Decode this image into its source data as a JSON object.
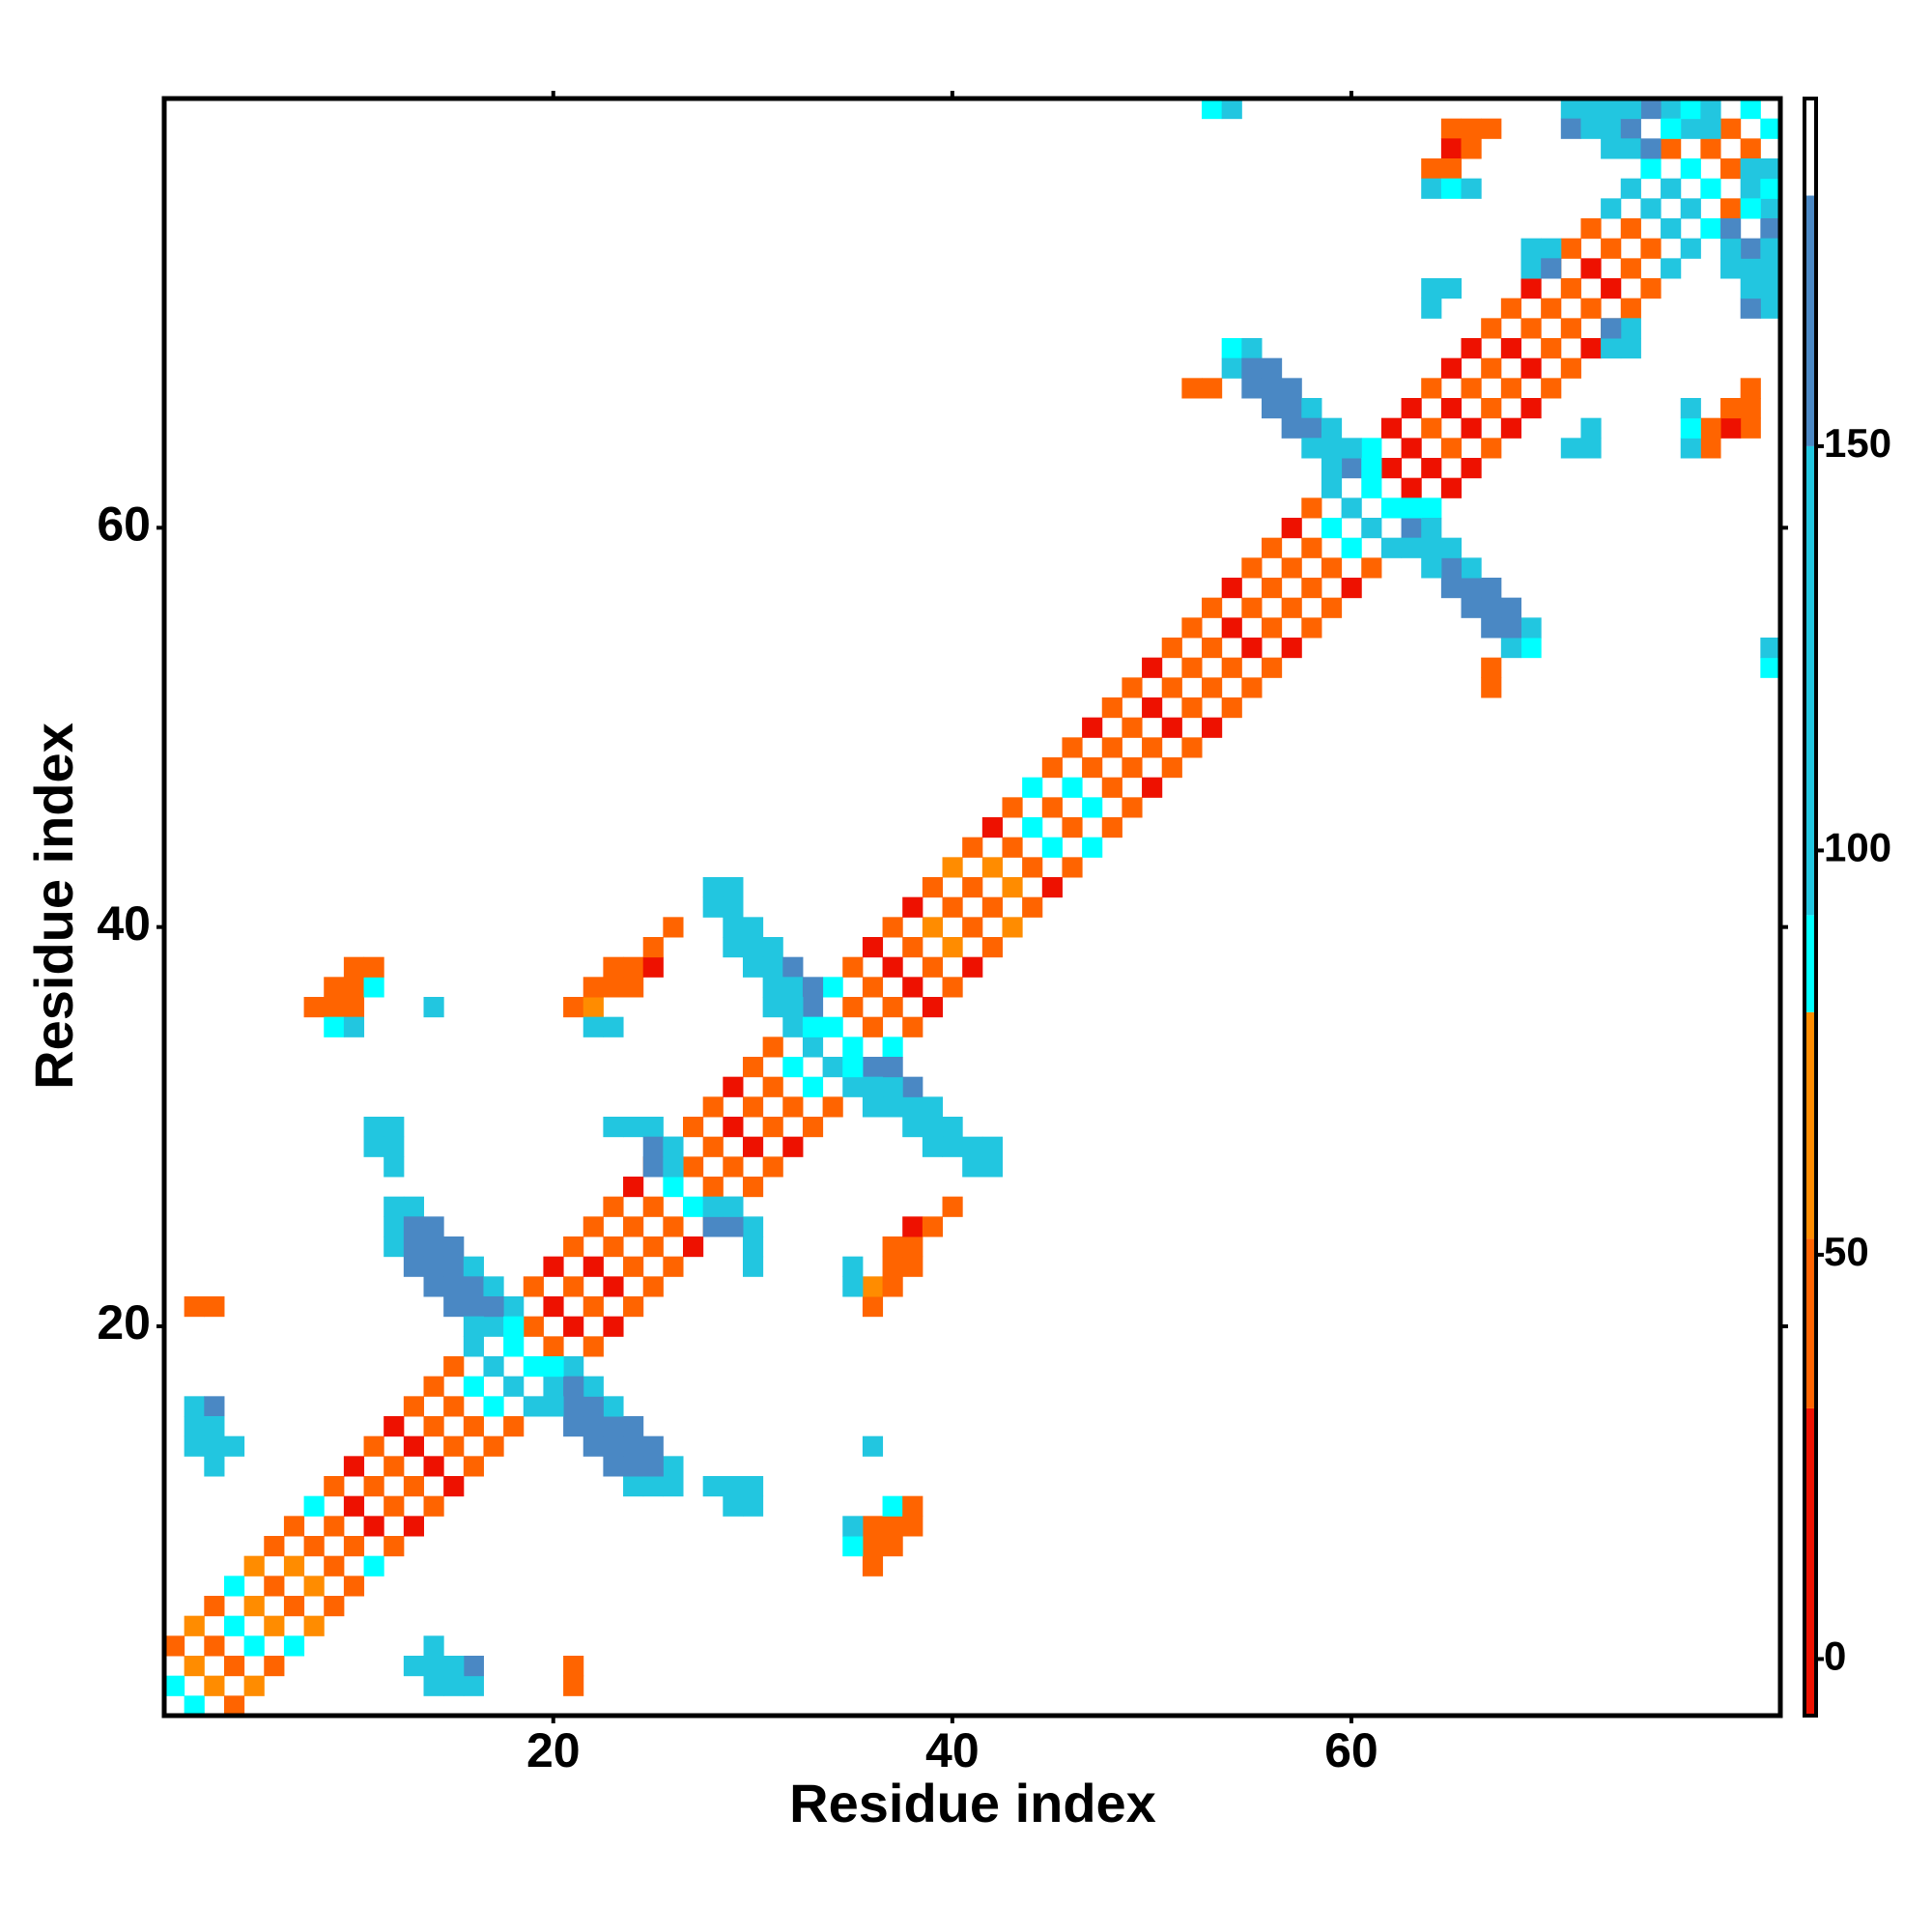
{
  "chart_data": {
    "type": "heatmap",
    "xlabel": "Residue index",
    "ylabel": "Residue index",
    "xlim": [
      0.5,
      81.5
    ],
    "ylim": [
      0.5,
      81.5
    ],
    "xticks": [
      20,
      40,
      60
    ],
    "yticks": [
      20,
      40,
      60
    ],
    "symmetric": true,
    "colorbar": {
      "lim": [
        -7,
        193
      ],
      "ticks": [
        0,
        50,
        100,
        150
      ],
      "bins": [
        -7,
        31,
        52,
        80,
        92,
        150,
        181,
        193
      ],
      "colors": [
        "#ee1100",
        "#ff6400",
        "#ff8c00",
        "#00ffff",
        "#22c6e0",
        "#4a88c4",
        "#ffffff"
      ]
    },
    "bands": [
      {
        "offset": 1,
        "start": 1,
        "values": [
          86,
          65,
          40,
          86,
          65,
          40,
          65,
          40,
          40,
          15,
          40,
          40,
          15,
          40,
          40,
          86,
          120,
          86,
          40,
          15,
          40,
          15,
          40,
          40,
          40,
          86,
          40,
          40,
          15,
          40,
          40,
          86,
          120,
          86,
          40,
          40,
          15,
          40,
          65,
          40,
          40,
          65,
          40,
          86,
          40,
          86,
          40,
          40,
          40,
          15,
          40,
          40,
          40,
          15,
          40,
          40,
          40,
          40,
          86,
          120,
          86,
          15,
          15,
          40,
          15,
          40,
          40,
          15,
          40,
          40,
          40,
          15,
          40,
          40,
          120,
          120,
          86,
          40,
          40,
          86
        ]
      },
      {
        "offset": 3,
        "start": 1,
        "values": [
          40,
          65,
          40,
          86,
          65,
          40,
          40,
          86,
          40,
          15,
          40,
          15,
          40,
          40,
          40,
          120,
          120,
          120,
          40,
          15,
          40,
          40,
          40,
          15,
          40,
          120,
          40,
          40,
          15,
          40,
          40,
          120,
          165,
          86,
          40,
          15,
          40,
          15,
          40,
          65,
          40,
          15,
          40,
          86,
          40,
          40,
          15,
          40,
          40,
          15,
          40,
          40,
          40,
          15,
          40,
          40,
          15,
          40,
          120,
          165,
          86,
          15,
          15,
          40,
          15,
          15,
          40,
          40,
          15,
          40,
          40,
          40,
          120,
          120,
          86,
          40,
          120,
          120
        ]
      }
    ],
    "cells": [
      [
        12,
        26,
        120
      ],
      [
        13,
        26,
        120
      ],
      [
        12,
        25,
        120
      ],
      [
        13,
        25,
        165
      ],
      [
        14,
        25,
        165
      ],
      [
        12,
        24,
        120
      ],
      [
        13,
        24,
        165
      ],
      [
        14,
        24,
        165
      ],
      [
        15,
        24,
        165
      ],
      [
        13,
        23,
        165
      ],
      [
        14,
        23,
        165
      ],
      [
        15,
        23,
        165
      ],
      [
        16,
        23,
        120
      ],
      [
        14,
        22,
        165
      ],
      [
        15,
        22,
        165
      ],
      [
        16,
        22,
        165
      ],
      [
        17,
        22,
        120
      ],
      [
        15,
        21,
        165
      ],
      [
        16,
        21,
        165
      ],
      [
        17,
        21,
        165
      ],
      [
        16,
        20,
        120
      ],
      [
        18,
        20,
        86
      ],
      [
        28,
        42,
        120
      ],
      [
        29,
        42,
        120
      ],
      [
        28,
        41,
        120
      ],
      [
        29,
        41,
        120
      ],
      [
        29,
        40,
        120
      ],
      [
        30,
        40,
        120
      ],
      [
        29,
        39,
        120
      ],
      [
        30,
        39,
        120
      ],
      [
        31,
        39,
        120
      ],
      [
        30,
        38,
        120
      ],
      [
        31,
        38,
        120
      ],
      [
        32,
        38,
        165
      ],
      [
        31,
        37,
        120
      ],
      [
        32,
        37,
        120
      ],
      [
        33,
        37,
        165
      ],
      [
        31,
        36,
        120
      ],
      [
        32,
        36,
        120
      ],
      [
        33,
        35,
        86
      ],
      [
        54,
        69,
        86
      ],
      [
        55,
        69,
        120
      ],
      [
        54,
        68,
        120
      ],
      [
        55,
        68,
        165
      ],
      [
        56,
        68,
        165
      ],
      [
        55,
        67,
        165
      ],
      [
        56,
        67,
        165
      ],
      [
        57,
        67,
        165
      ],
      [
        56,
        66,
        165
      ],
      [
        57,
        66,
        165
      ],
      [
        58,
        66,
        120
      ],
      [
        57,
        65,
        165
      ],
      [
        58,
        65,
        165
      ],
      [
        59,
        65,
        120
      ],
      [
        58,
        64,
        120
      ],
      [
        59,
        64,
        120
      ],
      [
        60,
        64,
        120
      ],
      [
        59,
        63,
        120
      ],
      [
        61,
        63,
        86
      ],
      [
        53,
        67,
        40
      ],
      [
        52,
        67,
        40
      ],
      [
        71,
        81,
        120
      ],
      [
        72,
        81,
        120
      ],
      [
        73,
        81,
        120
      ],
      [
        71,
        80,
        165
      ],
      [
        72,
        80,
        120
      ],
      [
        73,
        80,
        120
      ],
      [
        74,
        80,
        165
      ],
      [
        73,
        79,
        120
      ],
      [
        74,
        79,
        120
      ],
      [
        75,
        79,
        165
      ],
      [
        76,
        81,
        120
      ],
      [
        75,
        81,
        165
      ],
      [
        74,
        81,
        120
      ],
      [
        77,
        81,
        86
      ],
      [
        78,
        81,
        120
      ],
      [
        76,
        80,
        86
      ],
      [
        78,
        80,
        120
      ],
      [
        69,
        74,
        120
      ],
      [
        70,
        74,
        120
      ],
      [
        69,
        73,
        120
      ],
      [
        70,
        73,
        165
      ],
      [
        64,
        72,
        120
      ],
      [
        65,
        72,
        120
      ],
      [
        64,
        71,
        120
      ],
      [
        65,
        80,
        40
      ],
      [
        66,
        80,
        40
      ],
      [
        67,
        80,
        40
      ],
      [
        65,
        79,
        15
      ],
      [
        66,
        79,
        40
      ],
      [
        64,
        78,
        40
      ],
      [
        65,
        78,
        40
      ],
      [
        64,
        77,
        120
      ],
      [
        65,
        77,
        86
      ],
      [
        66,
        77,
        120
      ],
      [
        8,
        36,
        40
      ],
      [
        9,
        36,
        40
      ],
      [
        10,
        36,
        40
      ],
      [
        9,
        37,
        40
      ],
      [
        10,
        37,
        40
      ],
      [
        11,
        37,
        86
      ],
      [
        10,
        38,
        40
      ],
      [
        11,
        38,
        40
      ],
      [
        9,
        35,
        86
      ],
      [
        10,
        35,
        120
      ],
      [
        14,
        36,
        120
      ],
      [
        21,
        36,
        40
      ],
      [
        22,
        36,
        65
      ],
      [
        22,
        35,
        120
      ],
      [
        23,
        35,
        120
      ],
      [
        22,
        37,
        40
      ],
      [
        23,
        37,
        40
      ],
      [
        24,
        37,
        40
      ],
      [
        23,
        38,
        40
      ],
      [
        24,
        38,
        40
      ],
      [
        25,
        38,
        15
      ],
      [
        25,
        39,
        40
      ],
      [
        26,
        40,
        40
      ],
      [
        11,
        30,
        120
      ],
      [
        12,
        30,
        120
      ],
      [
        12,
        29,
        120
      ],
      [
        12,
        28,
        120
      ],
      [
        23,
        30,
        120
      ],
      [
        24,
        30,
        120
      ],
      [
        25,
        30,
        120
      ],
      [
        25,
        29,
        165
      ],
      [
        26,
        29,
        120
      ],
      [
        25,
        28,
        165
      ],
      [
        26,
        28,
        120
      ],
      [
        2,
        21,
        40
      ],
      [
        3,
        21,
        40
      ],
      [
        2,
        16,
        120
      ],
      [
        3,
        16,
        165
      ],
      [
        2,
        15,
        120
      ],
      [
        3,
        15,
        120
      ],
      [
        2,
        14,
        120
      ],
      [
        3,
        14,
        120
      ],
      [
        4,
        14,
        120
      ],
      [
        3,
        13,
        120
      ],
      [
        53,
        81,
        86
      ],
      [
        54,
        81,
        120
      ],
      [
        11,
        29,
        120
      ]
    ]
  }
}
